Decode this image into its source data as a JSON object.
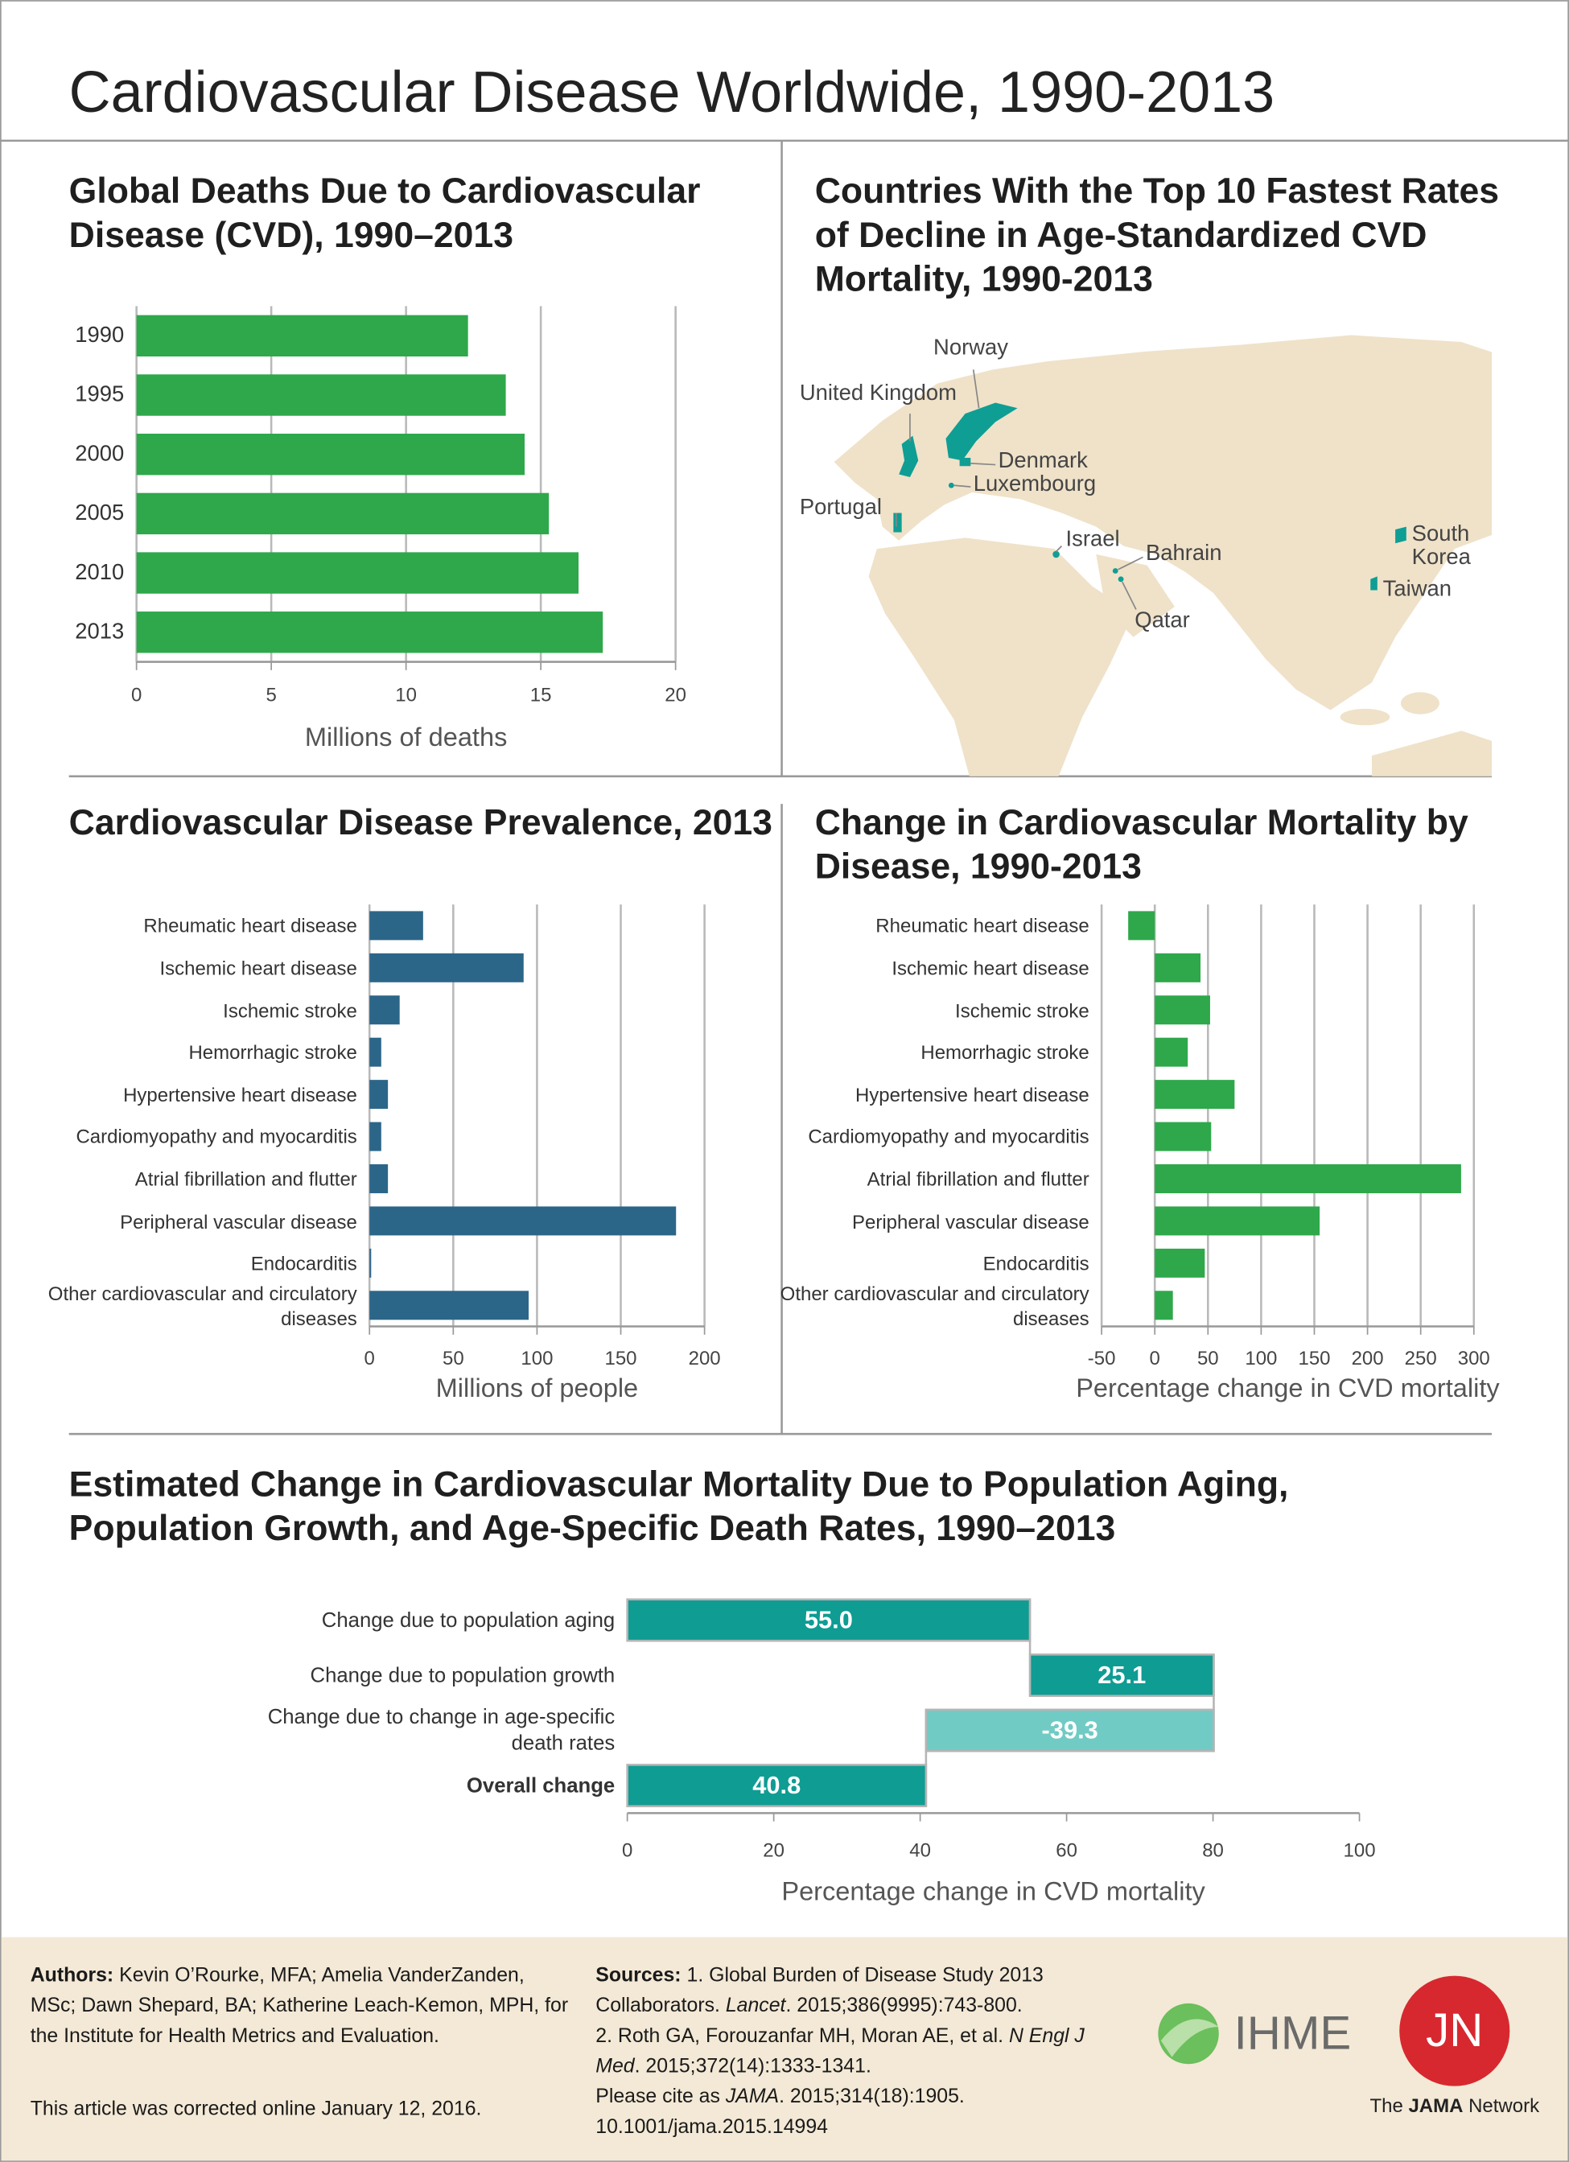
{
  "title": "Cardiovascular Disease Worldwide, 1990-2013",
  "chart_data": [
    {
      "type": "hbar",
      "title": "Global Deaths Due to Cardiovascular Disease (CVD), 1990–2013",
      "categories": [
        "1990",
        "1995",
        "2000",
        "2005",
        "2010",
        "2013"
      ],
      "values": [
        12.3,
        13.7,
        14.4,
        15.3,
        16.4,
        17.3
      ],
      "color": "#2ea84a",
      "xlim": [
        0,
        20
      ],
      "xticks": [
        0,
        5,
        10,
        15,
        20
      ],
      "xlabel": "Millions of deaths",
      "grid": true
    },
    {
      "type": "hbar",
      "title": "Cardiovascular Disease Prevalence, 2013",
      "categories": [
        "Rheumatic heart disease",
        "Ischemic heart disease",
        "Ischemic stroke",
        "Hemorrhagic stroke",
        "Hypertensive heart disease",
        "Cardiomyopathy and myocarditis",
        "Atrial fibrillation and flutter",
        "Peripheral vascular disease",
        "Endocarditis",
        "Other cardiovascular and circulatory diseases"
      ],
      "values": [
        32,
        92,
        18,
        7,
        11,
        7,
        11,
        183,
        1,
        95
      ],
      "color": "#2b6689",
      "xlim": [
        0,
        200
      ],
      "xticks": [
        0,
        50,
        100,
        150,
        200
      ],
      "xlabel": "Millions of people",
      "grid": true
    },
    {
      "type": "hbar",
      "title": "Change in Cardiovascular Mortality by Disease, 1990-2013",
      "categories": [
        "Rheumatic heart disease",
        "Ischemic heart disease",
        "Ischemic stroke",
        "Hemorrhagic stroke",
        "Hypertensive heart disease",
        "Cardiomyopathy and myocarditis",
        "Atrial fibrillation and flutter",
        "Peripheral vascular disease",
        "Endocarditis",
        "Other cardiovascular and circulatory diseases"
      ],
      "values": [
        -25,
        43,
        52,
        31,
        75,
        53,
        288,
        155,
        47,
        17
      ],
      "color": "#2ea84a",
      "xlim": [
        -50,
        300
      ],
      "xticks": [
        -50,
        0,
        50,
        100,
        150,
        200,
        250,
        300
      ],
      "xlabel": "Percentage change in CVD mortality",
      "grid": true
    },
    {
      "type": "waterfall",
      "title": "Estimated Change in Cardiovascular Mortality Due to Population Aging, Population Growth, and Age-Specific Death Rates, 1990–2013",
      "categories": [
        "Change due to population aging",
        "Change due to population growth",
        "Change due to change in age-specific death rates",
        "Overall change"
      ],
      "values": [
        55.0,
        25.1,
        -39.3,
        40.8
      ],
      "value_labels": [
        "55.0",
        "25.1",
        "-39.3",
        "40.8"
      ],
      "colors": [
        "#0e9c93",
        "#0e9c93",
        "#70cbc4",
        "#0e9c93"
      ],
      "xlim": [
        0,
        100
      ],
      "xticks": [
        0,
        20,
        40,
        60,
        80,
        100
      ],
      "xlabel": "Percentage change in CVD mortality",
      "grid": false
    }
  ],
  "map": {
    "title": "Countries With the Top 10 Fastest Rates of Decline in Age-Standardized CVD Mortality, 1990-2013",
    "labels": [
      "Norway",
      "United Kingdom",
      "Denmark",
      "Luxembourg",
      "Portugal",
      "Israel",
      "Bahrain",
      "Qatar",
      "South Korea",
      "Taiwan"
    ]
  },
  "footer": {
    "authors": [
      {
        "text": "Authors:",
        "bold": true
      },
      {
        "text": " Kevin O’Rourke, MFA; Amelia VanderZanden, MSc; Dawn Shepard, BA; Katherine Leach-Kemon, MPH, for the Institute for Health Metrics and Evaluation."
      }
    ],
    "correction": "This article was corrected online January 12, 2016.",
    "sources": [
      [
        {
          "text": "Sources:",
          "bold": true
        },
        {
          "text": " 1. Global Burden of Disease Study 2013 Collaborators. "
        },
        {
          "text": "Lancet",
          "italic": true
        },
        {
          "text": ". 2015;386(9995):743-800."
        }
      ],
      [
        {
          "text": "2. Roth GA, Forouzanfar MH, Moran AE, et al. "
        },
        {
          "text": "N Engl J Med",
          "italic": true
        },
        {
          "text": ". 2015;372(14):1333-1341."
        }
      ],
      [
        {
          "text": "Please cite as "
        },
        {
          "text": "JAMA",
          "italic": true
        },
        {
          "text": ". 2015;314(18):1905. 10.1001/jama.2015.14994"
        }
      ]
    ],
    "ihme": "IHME",
    "jn": "JN",
    "network": [
      {
        "text": "The "
      },
      {
        "text": "JAMA",
        "bold": true
      },
      {
        "text": " Network"
      }
    ]
  }
}
